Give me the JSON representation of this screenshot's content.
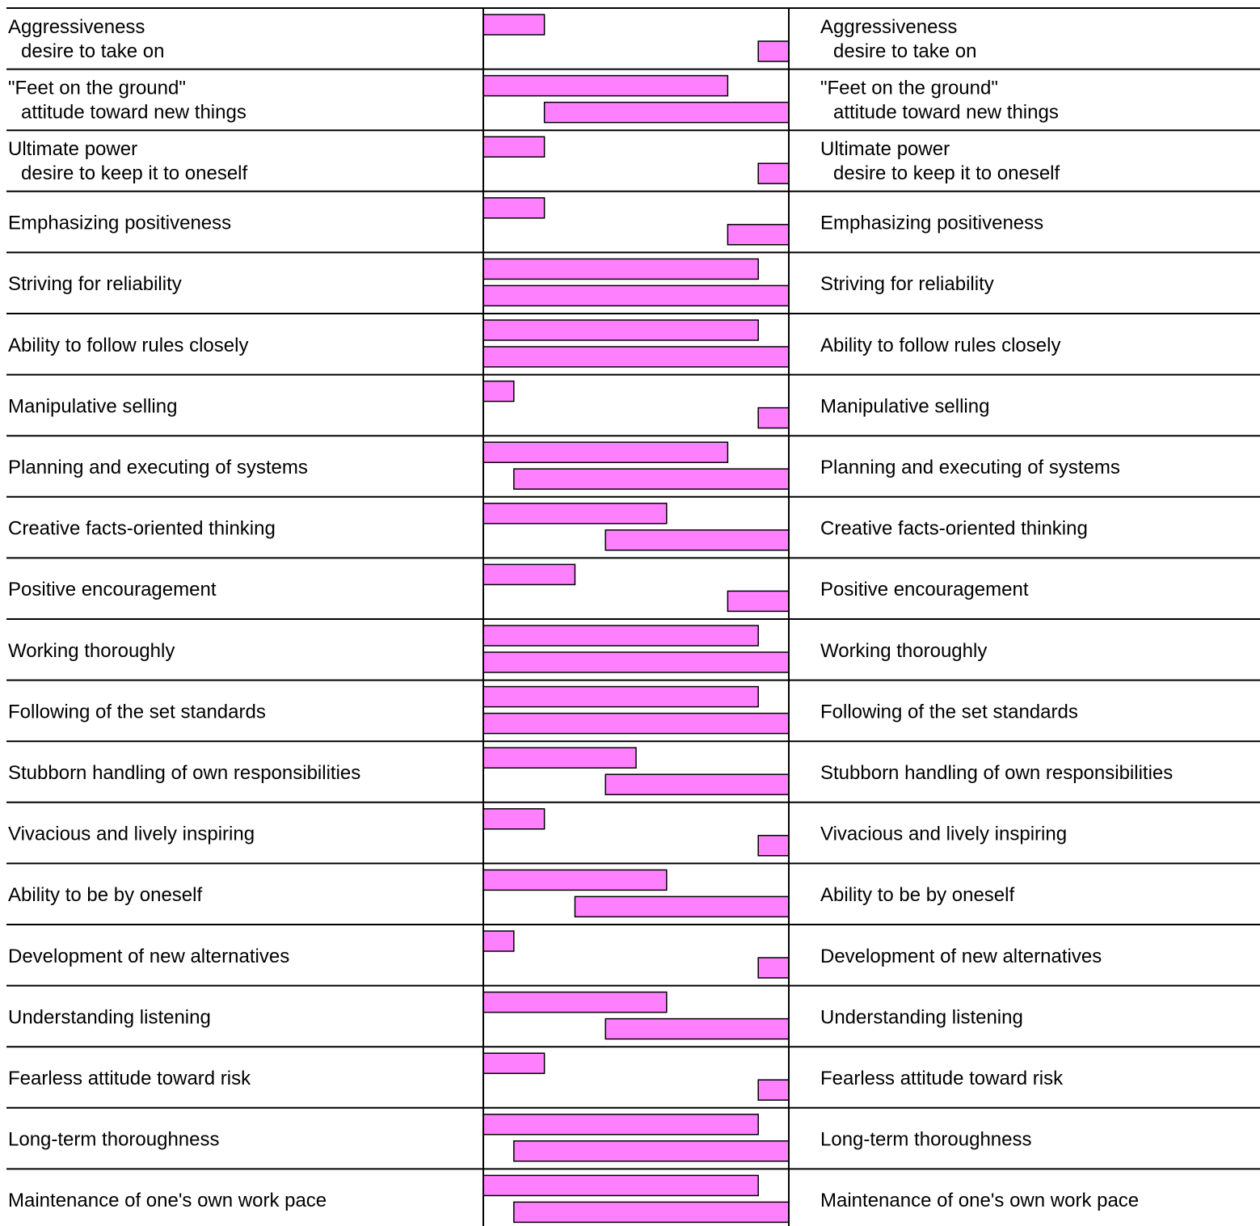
{
  "chart_data": {
    "type": "bar",
    "scale_max": 10,
    "colors": {
      "bar_fill": "#ff80ff",
      "bar_stroke": "#000000",
      "line": "#000000"
    },
    "rows": [
      {
        "label_lines": [
          "Aggressiveness",
          "desire to take on"
        ],
        "top_bar": 2,
        "bottom_bar": 1
      },
      {
        "label_lines": [
          "\"Feet on the ground\"",
          "attitude toward new things"
        ],
        "top_bar": 8,
        "bottom_bar": 8
      },
      {
        "label_lines": [
          "Ultimate power",
          "desire to keep it to oneself"
        ],
        "top_bar": 2,
        "bottom_bar": 1
      },
      {
        "label_lines": [
          "Emphasizing positiveness"
        ],
        "top_bar": 2,
        "bottom_bar": 2
      },
      {
        "label_lines": [
          "Striving for reliability"
        ],
        "top_bar": 9,
        "bottom_bar": 10
      },
      {
        "label_lines": [
          "Ability to follow rules closely"
        ],
        "top_bar": 9,
        "bottom_bar": 10
      },
      {
        "label_lines": [
          "Manipulative selling"
        ],
        "top_bar": 1,
        "bottom_bar": 1
      },
      {
        "label_lines": [
          "Planning and executing of systems"
        ],
        "top_bar": 8,
        "bottom_bar": 9
      },
      {
        "label_lines": [
          "Creative facts-oriented thinking"
        ],
        "top_bar": 6,
        "bottom_bar": 6
      },
      {
        "label_lines": [
          "Positive encouragement"
        ],
        "top_bar": 3,
        "bottom_bar": 2
      },
      {
        "label_lines": [
          "Working thoroughly"
        ],
        "top_bar": 9,
        "bottom_bar": 10
      },
      {
        "label_lines": [
          "Following of the set standards"
        ],
        "top_bar": 9,
        "bottom_bar": 10
      },
      {
        "label_lines": [
          "Stubborn handling of own responsibilities"
        ],
        "top_bar": 5,
        "bottom_bar": 6
      },
      {
        "label_lines": [
          "Vivacious and lively inspiring"
        ],
        "top_bar": 2,
        "bottom_bar": 1
      },
      {
        "label_lines": [
          "Ability to be by oneself"
        ],
        "top_bar": 6,
        "bottom_bar": 7
      },
      {
        "label_lines": [
          "Development of new alternatives"
        ],
        "top_bar": 1,
        "bottom_bar": 1
      },
      {
        "label_lines": [
          "Understanding listening"
        ],
        "top_bar": 6,
        "bottom_bar": 6
      },
      {
        "label_lines": [
          "Fearless attitude toward risk"
        ],
        "top_bar": 2,
        "bottom_bar": 1
      },
      {
        "label_lines": [
          "Long-term thoroughness"
        ],
        "top_bar": 9,
        "bottom_bar": 9
      },
      {
        "label_lines": [
          "Maintenance of one's own work pace"
        ],
        "top_bar": 9,
        "bottom_bar": 9
      }
    ]
  }
}
